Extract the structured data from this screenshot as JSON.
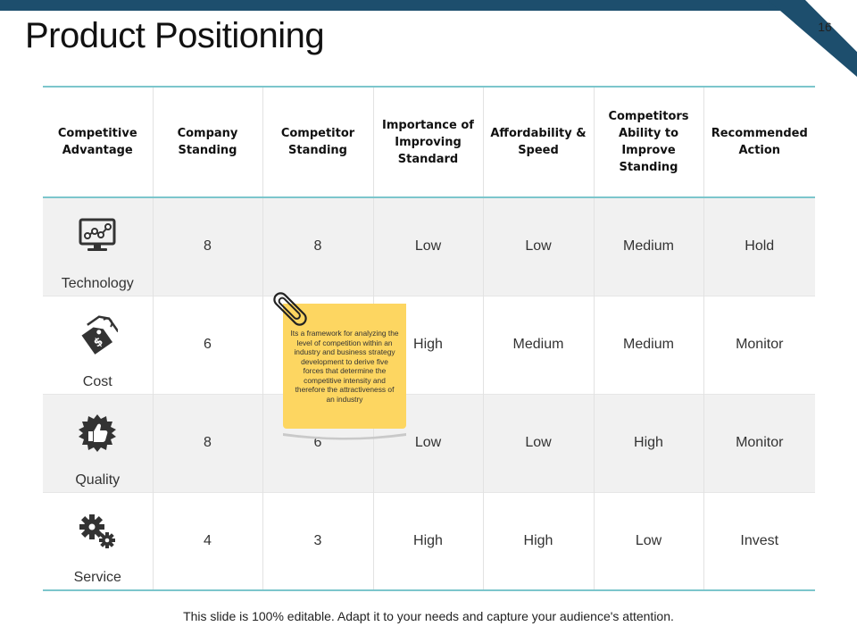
{
  "slide": {
    "title": "Product Positioning",
    "page_number": "16",
    "accent_color": "#1d4e6d",
    "border_color": "#7cc6cc",
    "footer": "This slide is 100% editable. Adapt it to your needs and capture your audience's attention."
  },
  "table": {
    "headers": [
      "Competitive Advantage",
      "Company Standing",
      "Competitor Standing",
      "Importance of Improving Standard",
      "Affordability & Speed",
      "Competitors Ability to Improve Standing",
      "Recommended Action"
    ],
    "rows": [
      {
        "category": "Technology",
        "icon": "monitor-network-icon",
        "cells": [
          "8",
          "8",
          "Low",
          "Low",
          "Medium",
          "Hold"
        ]
      },
      {
        "category": "Cost",
        "icon": "dollar-tag-icon",
        "cells": [
          "6",
          "",
          "High",
          "Medium",
          "Medium",
          "Monitor"
        ]
      },
      {
        "category": "Quality",
        "icon": "thumbs-up-badge-icon",
        "cells": [
          "8",
          "6",
          "Low",
          "Low",
          "High",
          "Monitor"
        ]
      },
      {
        "category": "Service",
        "icon": "gears-icon",
        "cells": [
          "4",
          "3",
          "High",
          "High",
          "Low",
          "Invest"
        ]
      }
    ]
  },
  "sticky_note": {
    "text": "Its a framework for analyzing the level of competition within an industry and business strategy development to derive five forces that determine the competitive intensity and therefore the attractiveness of an industry",
    "color": "#fdd661",
    "icon": "paperclip-icon"
  }
}
